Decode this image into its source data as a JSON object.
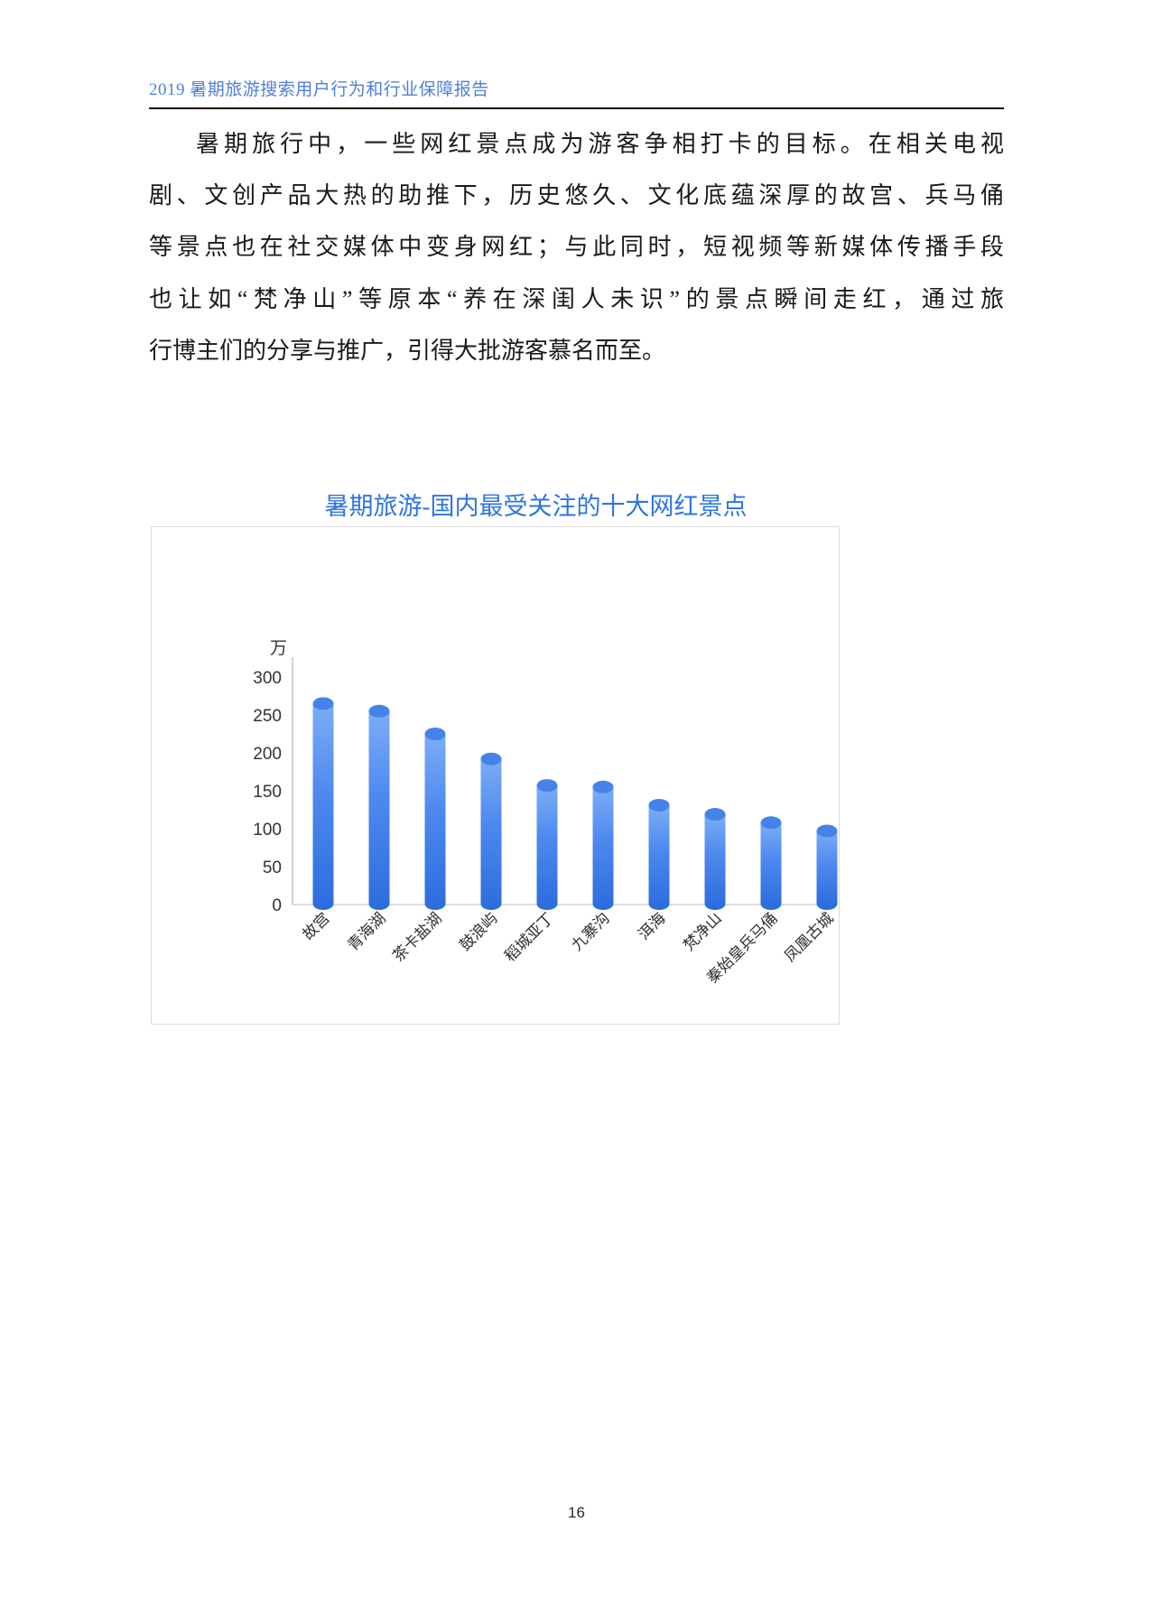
{
  "header": {
    "title": "2019 暑期旅游搜索用户行为和行业保障报告"
  },
  "paragraph": {
    "full_text": "暑期旅行中，一些网红景点成为游客争相打卡的目标。在相关电视剧、文创产品大热的助推下，历史悠久、文化底蕴深厚的故宫、兵马俑等景点也在社交媒体中变身网红；与此同时，短视频等新媒体传播手段也让如“梵净山”等原本“养在深闺人未识”的景点瞬间走红，通过旅行博主们的分享与推广，引得大批游客慕名而至。",
    "lines": [
      "暑期旅行中，一些网红景点成为游客争相打卡的目标。在相关电视",
      "剧、文创产品大热的助推下，历史悠久、文化底蕴深厚的故宫、兵马俑",
      "等景点也在社交媒体中变身网红；与此同时，短视频等新媒体传播手段",
      "也让如“梵净山”等原本“养在深闺人未识”的景点瞬间走红，通过旅",
      "行博主们的分享与推广，引得大批游客慕名而至。"
    ]
  },
  "chart_data": {
    "type": "bar",
    "title": "暑期旅游-国内最受关注的十大网红景点",
    "unit_label": "万",
    "categories": [
      "故宫",
      "青海湖",
      "茶卡盐湖",
      "鼓浪屿",
      "稻城亚丁",
      "九寨沟",
      "洱海",
      "梵净山",
      "秦始皇兵马俑",
      "凤凰古城"
    ],
    "values": [
      265,
      255,
      225,
      192,
      157,
      155,
      131,
      119,
      108,
      97
    ],
    "xlabel": "",
    "ylabel": "万",
    "ylim": [
      0,
      300
    ],
    "ytick_step": 50,
    "yticks": [
      0,
      50,
      100,
      150,
      200,
      250,
      300
    ],
    "grid": false,
    "legend": false,
    "bar_style": "3d-cylinder"
  },
  "footer": {
    "page_number": "16"
  },
  "colors": {
    "header_blue": "#4f7fd9",
    "title_blue": "#2e75e0",
    "bar_gradient_top": "#7cadf6",
    "bar_gradient_mid": "#4d89ee",
    "bar_gradient_bottom": "#2e6edd",
    "bar_cap": "#4583ea",
    "bar_bottom": "#2d6cdf",
    "axis_line": "#c6c6c6",
    "baseline": "#d2d2d2",
    "box_border": "#dcdcdc"
  }
}
